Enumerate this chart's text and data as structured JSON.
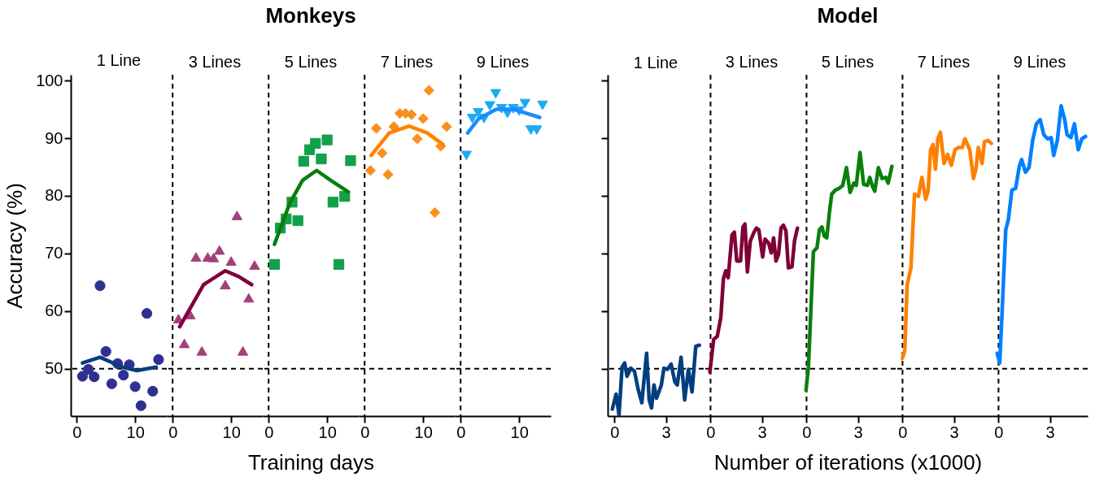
{
  "chart_data": [
    {
      "type": "scatter",
      "subtitle": "1 Line",
      "ylabel": "Accuracy (%)",
      "xlim": [
        -1,
        15.4
      ],
      "ylim": [
        41.8,
        101
      ],
      "xticks": [
        0,
        10
      ],
      "yticks": [
        50,
        60,
        70,
        80,
        90,
        100
      ],
      "grid": false,
      "series": [
        {
          "marker": "circle",
          "color": "#2e3192",
          "x": [
            1,
            2,
            3,
            4,
            5,
            6,
            7,
            8,
            9,
            10,
            11,
            12,
            13,
            14
          ],
          "values": [
            48.7,
            49.9,
            48.6,
            64.4,
            53,
            47.4,
            50.9,
            48.9,
            50.7,
            46.9,
            43.6,
            59.6,
            46.1,
            51.6
          ]
        },
        {
          "type": "line",
          "color": "#0a3d7a",
          "x": [
            1,
            4,
            7.8,
            10.3,
            13.6
          ],
          "values": [
            51,
            52,
            50.3,
            49.7,
            50.3
          ]
        }
      ],
      "ref_lines": [
        {
          "axis": "y",
          "value": 50,
          "line_style": "dashed",
          "color": "#000000"
        }
      ]
    },
    {
      "type": "scatter",
      "subtitle": "3 Lines",
      "xlim": [
        -1,
        15.4
      ],
      "ylim": [
        41.8,
        101
      ],
      "xticks": [
        0,
        10
      ],
      "tick_labels": "x",
      "grid": false,
      "series": [
        {
          "marker": "triangle",
          "color": "#a3407a",
          "x": [
            1,
            2,
            3,
            4,
            5,
            6,
            7,
            8,
            9,
            10,
            11,
            12,
            13,
            14
          ],
          "values": [
            58.7,
            54.4,
            59.4,
            69.4,
            53.1,
            69.4,
            69.3,
            70.6,
            64.6,
            68.7,
            76.6,
            53.1,
            62.3,
            68
          ]
        },
        {
          "type": "line",
          "color": "#80003a",
          "x": [
            1.2,
            5.3,
            9,
            11.3,
            13.5
          ],
          "values": [
            57.3,
            64.6,
            67,
            66,
            64.6
          ]
        }
      ],
      "ref_lines": [
        {
          "axis": "y",
          "value": 50,
          "line_style": "dashed",
          "color": "#000000"
        },
        {
          "axis": "x",
          "value": 0,
          "line_style": "dashed",
          "color": "#000000"
        }
      ]
    },
    {
      "type": "scatter",
      "title": "Monkeys",
      "subtitle": "5 Lines",
      "xlabel": "Training days",
      "xlim": [
        -1,
        15.4
      ],
      "ylim": [
        41.8,
        101
      ],
      "xticks": [
        0,
        10
      ],
      "tick_labels": "x",
      "grid": false,
      "series": [
        {
          "marker": "square",
          "color": "#12a04a",
          "x": [
            1,
            2,
            3,
            4,
            5,
            6,
            7,
            8,
            9,
            10,
            11,
            12,
            13,
            14
          ],
          "values": [
            68.1,
            74.4,
            76,
            78.9,
            75.7,
            86,
            88,
            89.1,
            86.4,
            89.7,
            78.9,
            68.1,
            79.9,
            86.1
          ]
        },
        {
          "type": "line",
          "color": "#0a7d0a",
          "x": [
            1,
            3.6,
            5.8,
            8.2,
            10.6,
            13.6
          ],
          "values": [
            71.6,
            78.7,
            82.7,
            84.4,
            82.7,
            80.7
          ]
        }
      ],
      "ref_lines": [
        {
          "axis": "y",
          "value": 50,
          "line_style": "dashed",
          "color": "#000000"
        },
        {
          "axis": "x",
          "value": 0,
          "line_style": "dashed",
          "color": "#000000"
        }
      ]
    },
    {
      "type": "scatter",
      "subtitle": "7 Lines",
      "xlim": [
        -1,
        15.4
      ],
      "ylim": [
        41.8,
        101
      ],
      "xticks": [
        0,
        10
      ],
      "tick_labels": "x",
      "grid": false,
      "series": [
        {
          "marker": "diamond",
          "color": "#f7901e",
          "x": [
            1,
            2,
            3,
            4,
            5,
            6,
            7,
            8,
            9,
            10,
            11,
            12,
            13,
            14
          ],
          "values": [
            84.4,
            91.7,
            87.4,
            83.7,
            92,
            94.3,
            94.3,
            94.1,
            89.9,
            93.4,
            98.3,
            77.1,
            88.6,
            92
          ]
        },
        {
          "type": "line",
          "color": "#ff8200",
          "x": [
            1.1,
            4.2,
            7.6,
            10.7,
            13.4
          ],
          "values": [
            87,
            90.9,
            92.1,
            90.9,
            88.9
          ]
        }
      ],
      "ref_lines": [
        {
          "axis": "y",
          "value": 50,
          "line_style": "dashed",
          "color": "#000000"
        },
        {
          "axis": "x",
          "value": 0,
          "line_style": "dashed",
          "color": "#000000"
        }
      ]
    },
    {
      "type": "scatter",
      "subtitle": "9 Lines",
      "xlim": [
        -1,
        15.4
      ],
      "ylim": [
        41.8,
        101
      ],
      "xticks": [
        0,
        10
      ],
      "tick_labels": "x",
      "grid": false,
      "series": [
        {
          "marker": "triangle-down",
          "color": "#1eaaf1",
          "x": [
            1,
            2,
            3,
            4,
            5,
            6,
            7,
            8,
            9,
            10,
            11,
            12,
            13,
            14
          ],
          "values": [
            87,
            93.4,
            94.4,
            93.4,
            95.6,
            97.7,
            95.1,
            94.3,
            95.1,
            94.7,
            96,
            91.4,
            91.4,
            95.7
          ]
        },
        {
          "type": "line",
          "color": "#1a8cff",
          "x": [
            1.2,
            3.1,
            6.1,
            9.1,
            13.5
          ],
          "values": [
            90.9,
            93.4,
            95,
            95,
            93.6
          ]
        }
      ],
      "ref_lines": [
        {
          "axis": "y",
          "value": 50,
          "line_style": "dashed",
          "color": "#000000"
        },
        {
          "axis": "x",
          "value": 0,
          "line_style": "dashed",
          "color": "#000000"
        }
      ]
    },
    {
      "type": "line",
      "subtitle": "1 Line",
      "xlim": [
        -0.4,
        5.2
      ],
      "ylim": [
        41.8,
        101
      ],
      "xticks": [
        0,
        3
      ],
      "yticks": [
        {
          "value": 50,
          "label": null
        },
        {
          "value": 60,
          "label": null
        },
        {
          "value": 70,
          "label": null
        },
        {
          "value": 80,
          "label": null
        },
        {
          "value": 90,
          "label": null
        },
        {
          "value": 100,
          "label": null
        }
      ],
      "tick_labels": "x",
      "grid": false,
      "series": [
        {
          "color": "#003f7f",
          "x": [
            -0.13,
            0.09,
            0.26,
            0.44,
            0.59,
            0.73,
            0.94,
            1.16,
            1.37,
            1.59,
            1.87,
            2.02,
            2.16,
            2.3,
            2.45,
            2.73,
            2.88,
            3.09,
            3.3,
            3.52,
            3.66,
            3.88,
            4.09,
            4.31,
            4.52,
            4.74,
            4.95
          ],
          "values": [
            43.0,
            45.6,
            42.0,
            50.3,
            51.0,
            48.7,
            50.1,
            49.6,
            46.5,
            44.1,
            52.7,
            44.6,
            43.2,
            47.2,
            44.9,
            47.2,
            50.1,
            49.9,
            50.8,
            47.7,
            47.2,
            52.0,
            44.6,
            49.9,
            46.0,
            53.9,
            54.1
          ]
        }
      ],
      "ref_lines": [
        {
          "axis": "y",
          "value": 50,
          "line_style": "dashed",
          "color": "#000000"
        }
      ]
    },
    {
      "type": "line",
      "subtitle": "3 Lines",
      "xlim": [
        -0.4,
        5.2
      ],
      "ylim": [
        41.8,
        101
      ],
      "xticks": [
        0,
        3
      ],
      "tick_labels": "x",
      "grid": false,
      "series": [
        {
          "color": "#7f0037",
          "x": [
            -0.04,
            0.18,
            0.39,
            0.6,
            0.75,
            0.89,
            1.03,
            1.25,
            1.39,
            1.53,
            1.75,
            1.89,
            2.01,
            2.15,
            2.32,
            2.54,
            2.68,
            2.82,
            3.04,
            3.18,
            3.39,
            3.54,
            3.68,
            3.82,
            3.97,
            4.11,
            4.25,
            4.4,
            4.54,
            4.75,
            4.9,
            5.07
          ],
          "values": [
            49.4,
            55.1,
            55.6,
            58.9,
            65.6,
            67.0,
            65.8,
            73.2,
            73.7,
            68.7,
            68.7,
            74.6,
            75.1,
            66.8,
            72.2,
            73.7,
            74.4,
            74.1,
            69.4,
            72.5,
            71.8,
            70.1,
            72.7,
            68.7,
            69.9,
            74.4,
            74.9,
            73.9,
            67.5,
            67.7,
            72.2,
            74.4
          ]
        }
      ],
      "ref_lines": [
        {
          "axis": "y",
          "value": 50,
          "line_style": "dashed",
          "color": "#000000"
        },
        {
          "axis": "x",
          "value": 0,
          "line_style": "dashed",
          "color": "#000000"
        }
      ]
    },
    {
      "type": "line",
      "title": "Model",
      "subtitle": "5 Lines",
      "xlabel": "Number of iterations (x1000)",
      "xlim": [
        -0.4,
        5.2
      ],
      "ylim": [
        41.8,
        101
      ],
      "xticks": [
        0,
        3
      ],
      "tick_labels": "x",
      "grid": false,
      "series": [
        {
          "color": "#0a800a",
          "x": [
            -0.03,
            0.11,
            0.25,
            0.4,
            0.61,
            0.75,
            0.9,
            1.04,
            1.18,
            1.33,
            1.47,
            1.69,
            1.9,
            2.11,
            2.33,
            2.54,
            2.76,
            2.9,
            3.12,
            3.33,
            3.55,
            3.69,
            3.83,
            3.98,
            4.19,
            4.41,
            4.62,
            4.76,
            4.98
          ],
          "values": [
            46.3,
            50.3,
            59.9,
            70.3,
            71.0,
            74.1,
            74.6,
            73.0,
            72.7,
            77.0,
            80.3,
            81.0,
            81.3,
            81.8,
            84.9,
            80.6,
            82.2,
            81.8,
            87.5,
            82.0,
            81.8,
            83.2,
            81.8,
            80.8,
            84.9,
            83.0,
            83.2,
            82.2,
            85.1
          ]
        }
      ],
      "ref_lines": [
        {
          "axis": "y",
          "value": 50,
          "line_style": "dashed",
          "color": "#000000"
        },
        {
          "axis": "x",
          "value": 0,
          "line_style": "dashed",
          "color": "#000000"
        }
      ]
    },
    {
      "type": "line",
      "subtitle": "7 Lines",
      "xlim": [
        -0.4,
        5.2
      ],
      "ylim": [
        41.8,
        101
      ],
      "xticks": [
        0,
        3
      ],
      "tick_labels": "x",
      "grid": false,
      "series": [
        {
          "color": "#ff8000",
          "x": [
            -0.01,
            0.13,
            0.27,
            0.49,
            0.7,
            0.92,
            1.13,
            1.35,
            1.49,
            1.64,
            1.78,
            1.92,
            2.06,
            2.21,
            2.42,
            2.63,
            2.85,
            3.06,
            3.28,
            3.49,
            3.64,
            3.92,
            4.14,
            4.28,
            4.42,
            4.64,
            4.78,
            4.99,
            5.18
          ],
          "values": [
            51.8,
            53.2,
            64.6,
            67.5,
            80.3,
            79.9,
            83.2,
            79.4,
            80.8,
            88.0,
            88.9,
            84.6,
            89.9,
            91.0,
            85.6,
            87.2,
            85.3,
            88.0,
            88.4,
            88.4,
            89.9,
            88.0,
            83.0,
            84.6,
            88.4,
            85.6,
            89.4,
            89.6,
            89.1
          ]
        }
      ],
      "ref_lines": [
        {
          "axis": "y",
          "value": 50,
          "line_style": "dashed",
          "color": "#000000"
        },
        {
          "axis": "x",
          "value": 0,
          "line_style": "dashed",
          "color": "#000000"
        }
      ]
    },
    {
      "type": "line",
      "subtitle": "9 Lines",
      "xlim": [
        -0.4,
        5.2
      ],
      "ylim": [
        41.8,
        101
      ],
      "xticks": [
        0,
        3
      ],
      "tick_labels": "x",
      "grid": false,
      "series": [
        {
          "color": "#0080ff",
          "x": [
            -0.08,
            0.07,
            0.21,
            0.42,
            0.57,
            0.78,
            1.0,
            1.21,
            1.35,
            1.57,
            1.78,
            1.99,
            2.21,
            2.43,
            2.64,
            2.86,
            3.07,
            3.22,
            3.43,
            3.65,
            3.86,
            4.0,
            4.22,
            4.43,
            4.65,
            4.86,
            5.08
          ],
          "values": [
            52.7,
            51.0,
            59.9,
            74.1,
            75.8,
            81.0,
            81.3,
            85.1,
            86.3,
            84.1,
            84.9,
            89.6,
            92.5,
            93.2,
            90.6,
            89.9,
            90.1,
            87.0,
            89.6,
            95.6,
            93.2,
            90.6,
            90.1,
            92.5,
            88.0,
            89.9,
            90.3
          ]
        }
      ],
      "ref_lines": [
        {
          "axis": "y",
          "value": 50,
          "line_style": "dashed",
          "color": "#000000"
        },
        {
          "axis": "x",
          "value": 0,
          "line_style": "dashed",
          "color": "#000000"
        }
      ]
    }
  ]
}
